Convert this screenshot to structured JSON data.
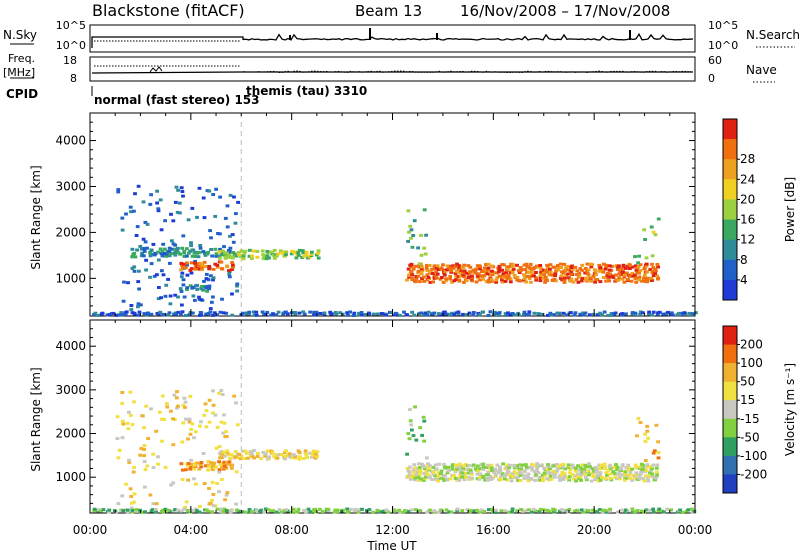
{
  "header": {
    "station": "Blackstone (fitACF)",
    "beam": "Beam 13",
    "date_range": "16/Nov/2008 – 17/Nov/2008"
  },
  "strip_labels": {
    "nsky": "N.Sky",
    "nsky_ticks": [
      "10^5",
      "10^0"
    ],
    "nsearch": "N.Search",
    "nsearch_ticks": [
      "10^5",
      "10^0"
    ],
    "freq": "Freq.",
    "freq_unit": "[MHz]",
    "freq_ticks": [
      "18",
      "8"
    ],
    "nave": "Nave",
    "nave_ticks": [
      "60",
      "0"
    ],
    "cpid": "CPID",
    "cpid_modes": [
      {
        "label": "normal (fast stereo) 153",
        "start_hour": 0
      },
      {
        "label": "themis (tau) 3310",
        "start_hour": 6
      }
    ]
  },
  "chart_data": [
    {
      "type": "heatmap",
      "name": "power",
      "ylabel": "Slant Range [km]",
      "xlabel": "Time UT",
      "x_ticks": [
        "00:00",
        "04:00",
        "08:00",
        "12:00",
        "16:00",
        "20:00",
        "00:00"
      ],
      "x_range_hours": [
        0,
        24
      ],
      "y_ticks": [
        1000,
        2000,
        3000,
        4000
      ],
      "y_range_km": [
        180,
        4600
      ],
      "colorbar": {
        "label": "Power [dB]",
        "ticks": [
          "4",
          "8",
          "12",
          "16",
          "20",
          "24",
          "28"
        ],
        "colors": [
          "#1f3bd6",
          "#2060c8",
          "#2f8a9a",
          "#3aa860",
          "#9cd040",
          "#f0d020",
          "#f0a020",
          "#f07010",
          "#e02010"
        ]
      },
      "scatter_regions": [
        {
          "t0": 1.0,
          "t1": 5.8,
          "r0": 200,
          "r1": 3000,
          "level": 1
        },
        {
          "t0": 1.5,
          "t1": 5.5,
          "r0": 1450,
          "r1": 1650,
          "level": 2
        },
        {
          "t0": 3.5,
          "t1": 5.6,
          "r0": 1150,
          "r1": 1350,
          "level": 7
        },
        {
          "t0": 5.0,
          "t1": 9.0,
          "r0": 1400,
          "r1": 1600,
          "level": 4
        },
        {
          "t0": 3.5,
          "t1": 4.8,
          "r0": 700,
          "r1": 850,
          "level": 2
        },
        {
          "t0": 12.5,
          "t1": 22.5,
          "r0": 900,
          "r1": 1300,
          "level": 7
        },
        {
          "t0": 12.5,
          "t1": 13.3,
          "r0": 1300,
          "r1": 2600,
          "level": 3
        },
        {
          "t0": 21.5,
          "t1": 22.5,
          "r0": 1300,
          "r1": 2400,
          "level": 4
        },
        {
          "t0": 0,
          "t1": 24,
          "r0": 180,
          "r1": 260,
          "level": 1
        }
      ]
    },
    {
      "type": "heatmap",
      "name": "velocity",
      "ylabel": "Slant Range [km]",
      "xlabel": "Time UT",
      "x_ticks": [
        "00:00",
        "04:00",
        "08:00",
        "12:00",
        "16:00",
        "20:00",
        "00:00"
      ],
      "x_range_hours": [
        0,
        24
      ],
      "y_ticks": [
        1000,
        2000,
        3000,
        4000
      ],
      "y_range_km": [
        180,
        4600
      ],
      "colorbar": {
        "label": "Velocity [m s⁻¹]",
        "ticks": [
          "200",
          "100",
          "50",
          "15",
          "-15",
          "-50",
          "-100",
          "-200"
        ],
        "colors": [
          "#2040c0",
          "#3070b0",
          "#30a060",
          "#80d040",
          "#c8c8c0",
          "#f0e040",
          "#f0b030",
          "#f07010",
          "#e02010"
        ]
      },
      "scatter_regions": [
        {
          "t0": 1.0,
          "t1": 5.8,
          "r0": 200,
          "r1": 3000,
          "level": 5
        },
        {
          "t0": 3.5,
          "t1": 5.6,
          "r0": 1150,
          "r1": 1350,
          "level": 6
        },
        {
          "t0": 5.0,
          "t1": 9.0,
          "r0": 1400,
          "r1": 1600,
          "level": 5
        },
        {
          "t0": 12.5,
          "t1": 22.5,
          "r0": 900,
          "r1": 1300,
          "level": 4
        },
        {
          "t0": 12.5,
          "t1": 13.3,
          "r0": 1300,
          "r1": 2600,
          "level": 3
        },
        {
          "t0": 21.5,
          "t1": 22.5,
          "r0": 1300,
          "r1": 2400,
          "level": 6
        },
        {
          "t0": 0,
          "t1": 24,
          "r0": 180,
          "r1": 260,
          "level": 3
        }
      ]
    }
  ]
}
